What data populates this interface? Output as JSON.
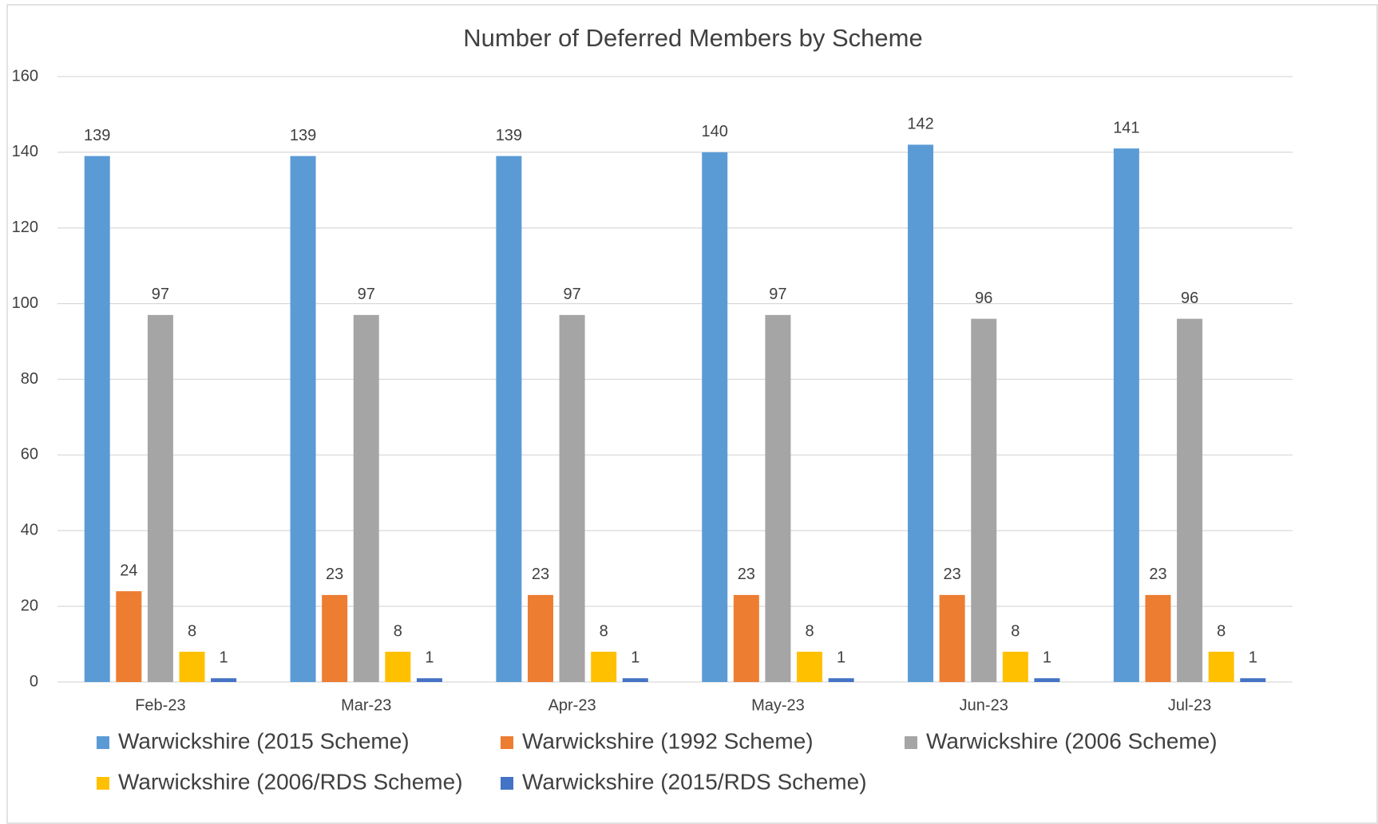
{
  "chart_data": {
    "type": "bar",
    "title": "Number of Deferred Members by Scheme",
    "categories": [
      "Feb-23",
      "Mar-23",
      "Apr-23",
      "May-23",
      "Jun-23",
      "Jul-23"
    ],
    "series": [
      {
        "name": "Warwickshire (2015 Scheme)",
        "color": "#5b9bd5",
        "values": [
          139,
          139,
          139,
          140,
          142,
          141
        ]
      },
      {
        "name": "Warwickshire (1992 Scheme)",
        "color": "#ed7d31",
        "values": [
          24,
          23,
          23,
          23,
          23,
          23
        ]
      },
      {
        "name": "Warwickshire (2006 Scheme)",
        "color": "#a5a5a5",
        "values": [
          97,
          97,
          97,
          97,
          96,
          96
        ]
      },
      {
        "name": "Warwickshire (2006/RDS Scheme)",
        "color": "#ffc000",
        "values": [
          8,
          8,
          8,
          8,
          8,
          8
        ]
      },
      {
        "name": "Warwickshire (2015/RDS Scheme)",
        "color": "#4472c4",
        "values": [
          1,
          1,
          1,
          1,
          1,
          1
        ]
      }
    ],
    "ylim": [
      0,
      160
    ],
    "yticks": [
      0,
      20,
      40,
      60,
      80,
      100,
      120,
      140,
      160
    ],
    "grid": true,
    "legend": "bottom"
  }
}
